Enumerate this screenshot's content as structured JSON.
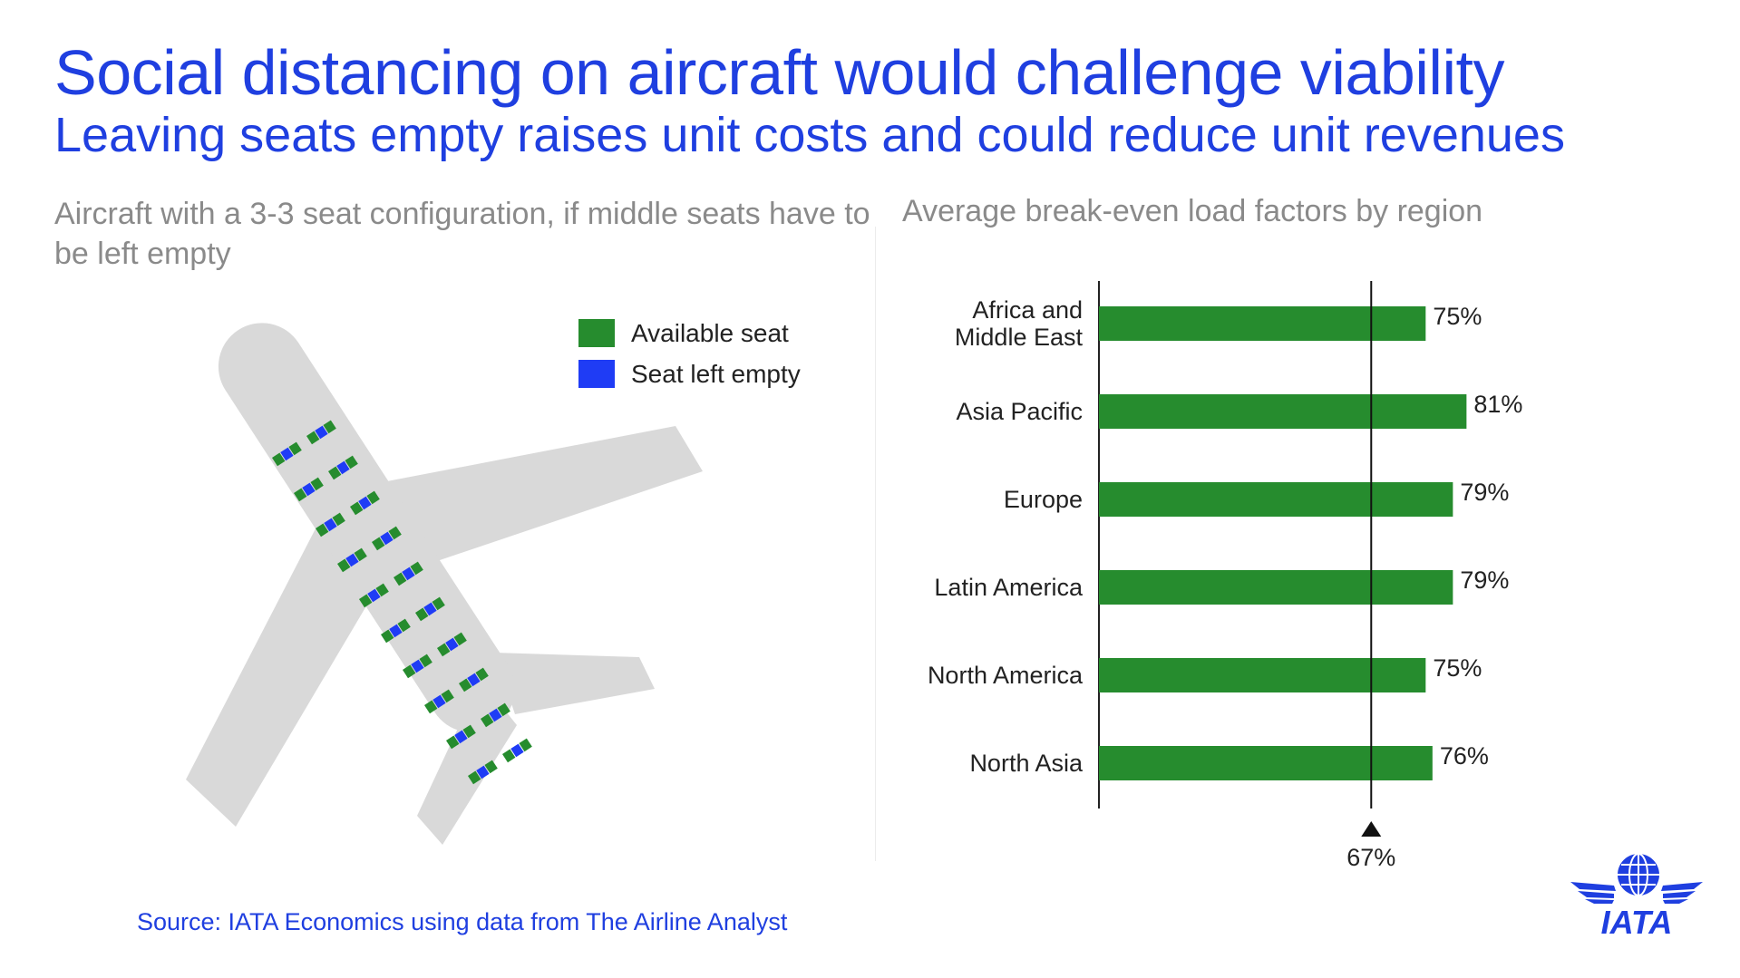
{
  "header": {
    "title": "Social distancing on aircraft would challenge viability",
    "subtitle": "Leaving seats empty raises unit costs and could reduce unit revenues"
  },
  "left_panel": {
    "heading": "Aircraft with a 3-3 seat configuration, if middle seats have to be left empty",
    "legend": [
      {
        "label": "Available seat",
        "color": "#268c2e"
      },
      {
        "label": "Seat left empty",
        "color": "#1f3cf5"
      }
    ]
  },
  "right_panel": {
    "heading": "Average break-even load factors by region"
  },
  "chart_data": {
    "type": "bar",
    "orientation": "horizontal",
    "title": "Average break-even load factors by region",
    "categories": [
      "Africa and Middle East",
      "Asia Pacific",
      "Europe",
      "Latin America",
      "North America",
      "North Asia"
    ],
    "values": [
      75,
      81,
      79,
      79,
      75,
      76
    ],
    "value_labels": [
      "75%",
      "81%",
      "79%",
      "79%",
      "75%",
      "76%"
    ],
    "reference_line": {
      "value": 67,
      "label": "67%"
    },
    "bar_color": "#268c2e",
    "xlim": [
      27,
      100
    ]
  },
  "footer": {
    "source": "Source: IATA Economics using data from The Airline Analyst",
    "logo_text": "IATA"
  },
  "colors": {
    "accent": "#1f3fe0",
    "available_seat": "#268c2e",
    "empty_seat": "#1f3cf5",
    "plane": "#d9d9d9"
  }
}
